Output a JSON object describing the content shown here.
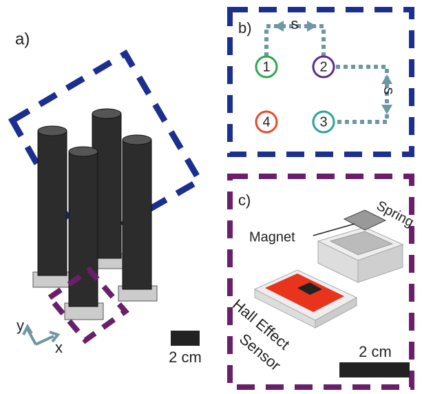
{
  "panels": [
    {
      "label": "a)",
      "axes": {
        "y": "y",
        "x": "x"
      },
      "scale_bar": "2 cm"
    },
    {
      "label": "b)",
      "spacing_labels": [
        "s",
        "s"
      ],
      "positions": [
        "1",
        "2",
        "3",
        "4"
      ]
    },
    {
      "label": "c)",
      "parts": [
        "Spring",
        "Magnet"
      ],
      "sensor_label": [
        "Hall Effect",
        "Sensor"
      ],
      "scale_bar": "2 cm"
    }
  ]
}
